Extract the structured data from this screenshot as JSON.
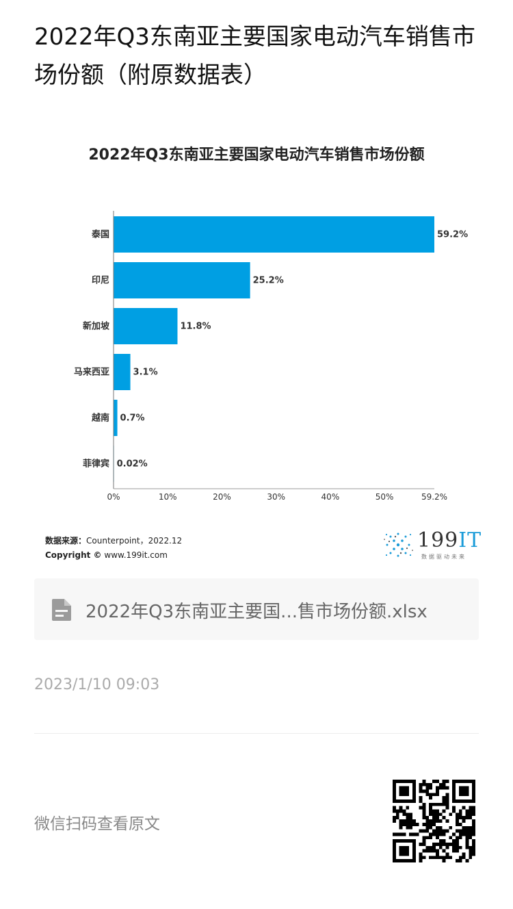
{
  "page": {
    "title": "2022年Q3东南亚主要国家电动汽车销售市场份额（附原数据表）"
  },
  "chart_data": {
    "type": "bar",
    "orientation": "horizontal",
    "title": "2022年Q3东南亚主要国家电动汽车销售市场份额",
    "categories": [
      "泰国",
      "印尼",
      "新加坡",
      "马来西亚",
      "越南",
      "菲律宾"
    ],
    "values": [
      59.2,
      25.2,
      11.8,
      3.1,
      0.7,
      0.02
    ],
    "value_labels": [
      "59.2%",
      "25.2%",
      "11.8%",
      "3.1%",
      "0.7%",
      "0.02%"
    ],
    "x_ticks": [
      0,
      10,
      20,
      30,
      40,
      50,
      59.2
    ],
    "x_tick_labels": [
      "0%",
      "10%",
      "20%",
      "30%",
      "40%",
      "50%",
      "59.2%"
    ],
    "xlim": [
      0,
      59.2
    ],
    "bar_color": "#009fe3",
    "grid": false
  },
  "source": {
    "label": "数据来源：",
    "text": "Counterpoint，2022.12",
    "copyright_label": "Copyright ©",
    "site": "www.199it.com"
  },
  "logo": {
    "digits": "199",
    "it": "IT",
    "slogan": "数据驱动未来"
  },
  "attachment": {
    "filename": "2022年Q3东南亚主要国...售市场份额.xlsx",
    "icon": "file-icon"
  },
  "meta": {
    "datetime": "2023/1/10 09:03",
    "scan_text": "微信扫码查看原文"
  }
}
